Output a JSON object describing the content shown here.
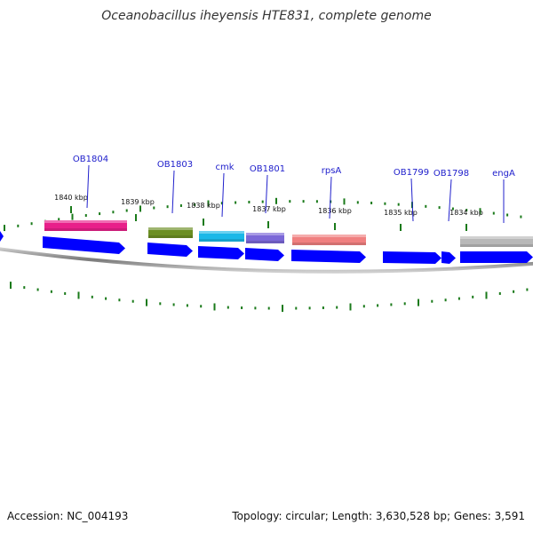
{
  "title": "Oceanobacillus iheyensis HTE831, complete genome",
  "footer": {
    "accession": "Accession: NC_004193",
    "stats": "Topology: circular; Length: 3,630,528 bp; Genes: 3,591"
  },
  "colors": {
    "cds": "#0000ff",
    "backbone": "#888888",
    "tick": "#1a7a1a",
    "label_line": "#2020cc"
  },
  "kbp_marks": [
    {
      "label": "1840 kbp"
    },
    {
      "label": "1839 kbp"
    },
    {
      "label": "1838 kbp"
    },
    {
      "label": "1837 kbp"
    },
    {
      "label": "1836 kbp"
    },
    {
      "label": "1835 kbp"
    },
    {
      "label": "1834 kbp"
    }
  ],
  "genes": [
    {
      "label": "OB1804",
      "color": "#e8208a"
    },
    {
      "label": "OB1803",
      "color": "#6b8e23"
    },
    {
      "label": "cmk",
      "color": "#1ab8e8"
    },
    {
      "label": "OB1801",
      "color": "#7b68d8"
    },
    {
      "label": "rpsA",
      "color": "#f08080"
    },
    {
      "label": "OB1799",
      "color": ""
    },
    {
      "label": "OB1798",
      "color": ""
    },
    {
      "label": "engA",
      "color": "#b8b8b8"
    }
  ]
}
